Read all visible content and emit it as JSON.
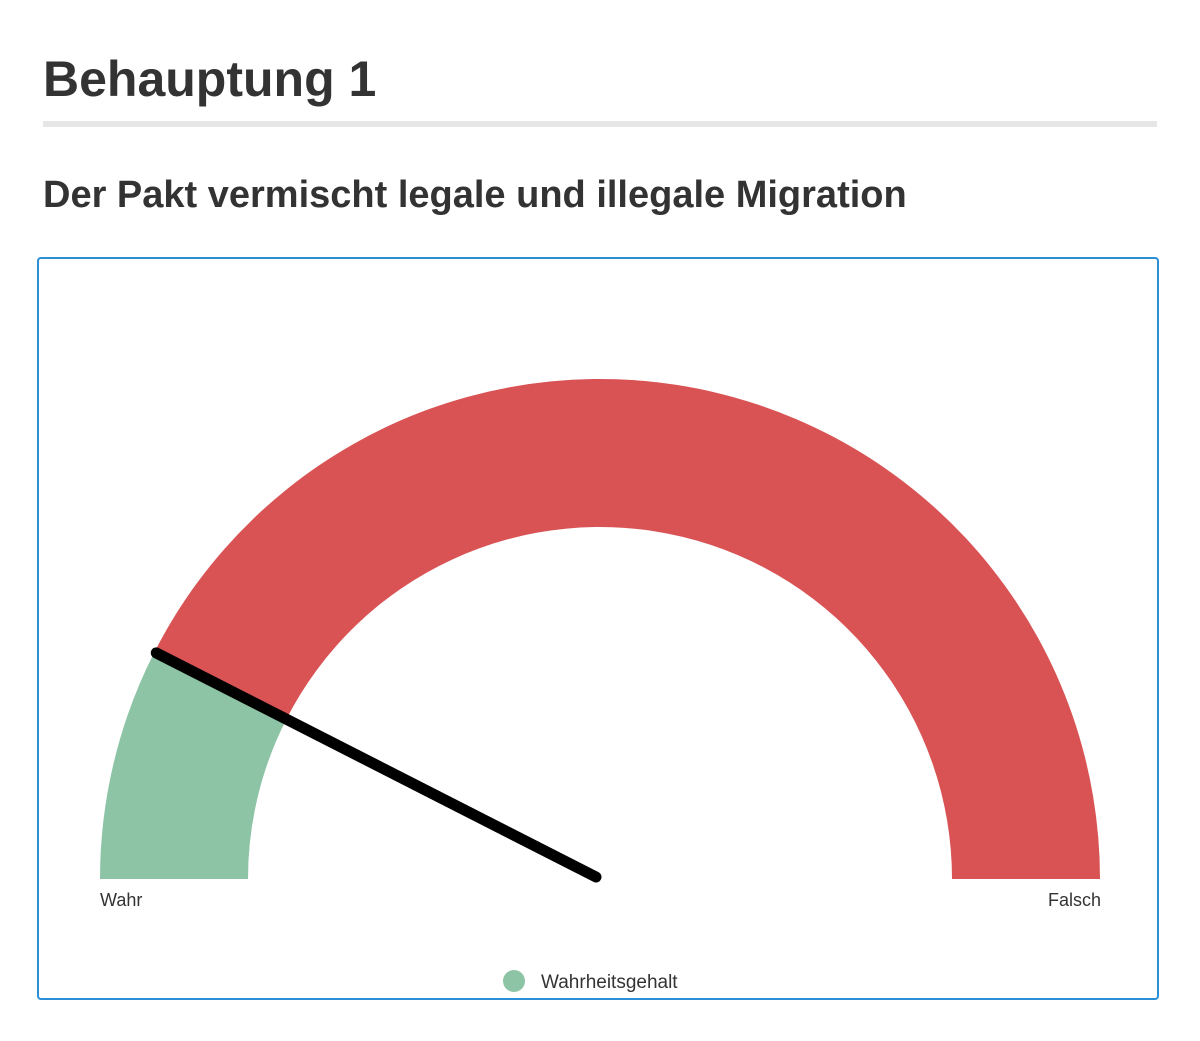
{
  "header": {
    "title": "Behauptung 1",
    "subtitle": "Der Pakt vermischt legale und illegale Migration"
  },
  "chart_data": {
    "type": "gauge",
    "min": 0,
    "max": 1,
    "value": 0.15,
    "min_label": "Wahr",
    "max_label": "Falsch",
    "segments": [
      {
        "from": 0,
        "to": 0.15,
        "color": "#8dc4a5"
      },
      {
        "from": 0.15,
        "to": 1,
        "color": "#d95355"
      }
    ],
    "needle_color": "#000000",
    "legend": {
      "placement": "bottom-center",
      "items": [
        {
          "label": "Wahrheitsgehalt",
          "color": "#8dc4a5"
        }
      ]
    }
  }
}
